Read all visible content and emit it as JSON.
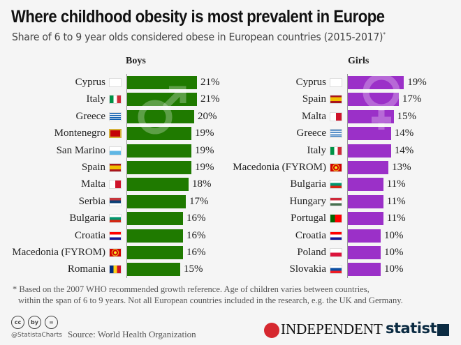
{
  "title": "Where childhood obesity is most prevalent in Europe",
  "subtitle": "Share of 6 to 9 year olds considered obese in European countries (2015-2017)",
  "subtitle_marker": "*",
  "chart_data": [
    {
      "type": "bar",
      "orientation": "horizontal",
      "title": "Boys",
      "color": "#1f7a00",
      "unit": "%",
      "categories": [
        "Cyprus",
        "Italy",
        "Greece",
        "Montenegro",
        "San Marino",
        "Spain",
        "Malta",
        "Serbia",
        "Bulgaria",
        "Croatia",
        "Macedonia (FYROM)",
        "Romania"
      ],
      "values": [
        21,
        21,
        20,
        19,
        19,
        19,
        18,
        17,
        16,
        16,
        16,
        15
      ],
      "labels": [
        "21%",
        "21%",
        "20%",
        "19%",
        "19%",
        "19%",
        "18%",
        "17%",
        "16%",
        "16%",
        "16%",
        "15%"
      ],
      "background_icon": "male-symbol-icon"
    },
    {
      "type": "bar",
      "orientation": "horizontal",
      "title": "Girls",
      "color": "#9b30c8",
      "unit": "%",
      "categories": [
        "Cyprus",
        "Spain",
        "Malta",
        "Greece",
        "Italy",
        "Macedonia (FYROM)",
        "Bulgaria",
        "Hungary",
        "Portugal",
        "Croatia",
        "Poland",
        "Slovakia"
      ],
      "values": [
        19,
        17,
        15,
        14,
        14,
        13,
        11,
        11,
        11,
        10,
        10,
        10
      ],
      "labels": [
        "19%",
        "17%",
        "15%",
        "14%",
        "14%",
        "13%",
        "11%",
        "11%",
        "11%",
        "10%",
        "10%",
        "10%"
      ],
      "background_icon": "female-symbol-icon"
    }
  ],
  "footnote": [
    "* Based on the 2007 WHO recommended growth reference. Age of children varies between countries,",
    "within the span of 6 to 9 years. Not all European countries included in the research, e.g. the UK and Germany."
  ],
  "footer": {
    "handle": "@StatistaCharts",
    "source": "Source: World Health Organization",
    "partner": "INDEPENDENT",
    "brand": "statista",
    "license_icons": [
      "cc",
      "by",
      "="
    ]
  }
}
